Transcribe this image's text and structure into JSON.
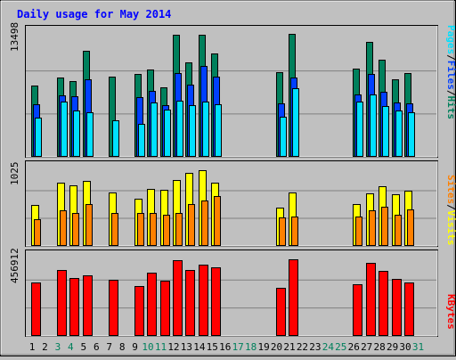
{
  "chart_title": "Daily usage for May 2014",
  "colors": {
    "background": "#c0c0c0",
    "title": "#0000ff",
    "hits": "#00805c",
    "files": "#0040ff",
    "pages": "#00e0ff",
    "sites": "#ff8000",
    "visits": "#ffff00",
    "kbytes": "#ff0000",
    "weekend_label": "#00805c",
    "weekday_label": "#000000"
  },
  "panels": {
    "top": {
      "scale_max_label": "13498",
      "legend": [
        {
          "text": "Pages",
          "color": "#00e0ff"
        },
        {
          "text": "/",
          "color": "#000000"
        },
        {
          "text": "Files",
          "color": "#0040ff"
        },
        {
          "text": "/",
          "color": "#000000"
        },
        {
          "text": "Hits",
          "color": "#00805c"
        }
      ]
    },
    "middle": {
      "scale_max_label": "1025",
      "legend": [
        {
          "text": "Sites",
          "color": "#ff8000"
        },
        {
          "text": "/",
          "color": "#000000"
        },
        {
          "text": "Visits",
          "color": "#ffff00"
        }
      ]
    },
    "bottom": {
      "scale_max_label": "456912",
      "legend": [
        {
          "text": "KBytes",
          "color": "#ff0000"
        }
      ]
    }
  },
  "chart_data": {
    "type": "bar",
    "title": "Daily usage for May 2014",
    "x_categories": [
      "1",
      "2",
      "3",
      "4",
      "5",
      "6",
      "7",
      "8",
      "9",
      "10",
      "11",
      "12",
      "13",
      "14",
      "15",
      "16",
      "17",
      "18",
      "19",
      "20",
      "21",
      "22",
      "23",
      "24",
      "25",
      "26",
      "27",
      "28",
      "29",
      "30",
      "31"
    ],
    "weekend_days": [
      "3",
      "4",
      "10",
      "11",
      "17",
      "18",
      "24",
      "25",
      "31"
    ],
    "series": [
      {
        "name": "Hits",
        "panel": "top",
        "ylim": [
          0,
          13498
        ],
        "values": [
          7600,
          0,
          8500,
          8100,
          11300,
          0,
          8600,
          0,
          8800,
          9300,
          7400,
          13000,
          10100,
          13000,
          11000,
          0,
          0,
          0,
          0,
          9000,
          13100,
          0,
          0,
          0,
          0,
          9400,
          12300,
          10400,
          8300,
          8900,
          0
        ]
      },
      {
        "name": "Files",
        "panel": "top",
        "ylim": [
          0,
          13498
        ],
        "values": [
          5600,
          0,
          6600,
          6500,
          8300,
          0,
          0,
          0,
          6400,
          7000,
          5500,
          8900,
          7700,
          9700,
          8600,
          0,
          0,
          0,
          0,
          5700,
          8500,
          0,
          0,
          0,
          0,
          6700,
          8800,
          6900,
          5800,
          5700,
          0
        ]
      },
      {
        "name": "Pages",
        "panel": "top",
        "ylim": [
          0,
          13498
        ],
        "values": [
          4200,
          0,
          5900,
          4900,
          4800,
          0,
          3900,
          0,
          3500,
          5800,
          5000,
          6000,
          5500,
          5900,
          5600,
          0,
          0,
          0,
          0,
          4300,
          7300,
          0,
          0,
          0,
          0,
          5900,
          6700,
          5400,
          4900,
          4800,
          0
        ]
      },
      {
        "name": "Visits",
        "panel": "middle",
        "ylim": [
          0,
          1025
        ],
        "values": [
          520,
          0,
          810,
          780,
          830,
          0,
          680,
          0,
          600,
          730,
          720,
          840,
          930,
          970,
          810,
          0,
          0,
          0,
          0,
          490,
          680,
          0,
          0,
          0,
          0,
          530,
          670,
          760,
          660,
          710,
          0
        ]
      },
      {
        "name": "Sites",
        "panel": "middle",
        "ylim": [
          0,
          1025
        ],
        "values": [
          340,
          0,
          460,
          420,
          530,
          0,
          420,
          0,
          420,
          420,
          400,
          420,
          530,
          580,
          640,
          0,
          0,
          0,
          0,
          360,
          380,
          0,
          0,
          0,
          0,
          380,
          450,
          500,
          400,
          470,
          0
        ]
      },
      {
        "name": "KBytes",
        "panel": "bottom",
        "ylim": [
          0,
          456912
        ],
        "values": [
          300000,
          0,
          370000,
          325000,
          342000,
          0,
          315000,
          0,
          280000,
          355000,
          313000,
          427000,
          372000,
          400000,
          385000,
          0,
          0,
          0,
          0,
          272000,
          430000,
          0,
          0,
          0,
          0,
          290000,
          410000,
          365000,
          320000,
          300000,
          0
        ]
      }
    ]
  }
}
